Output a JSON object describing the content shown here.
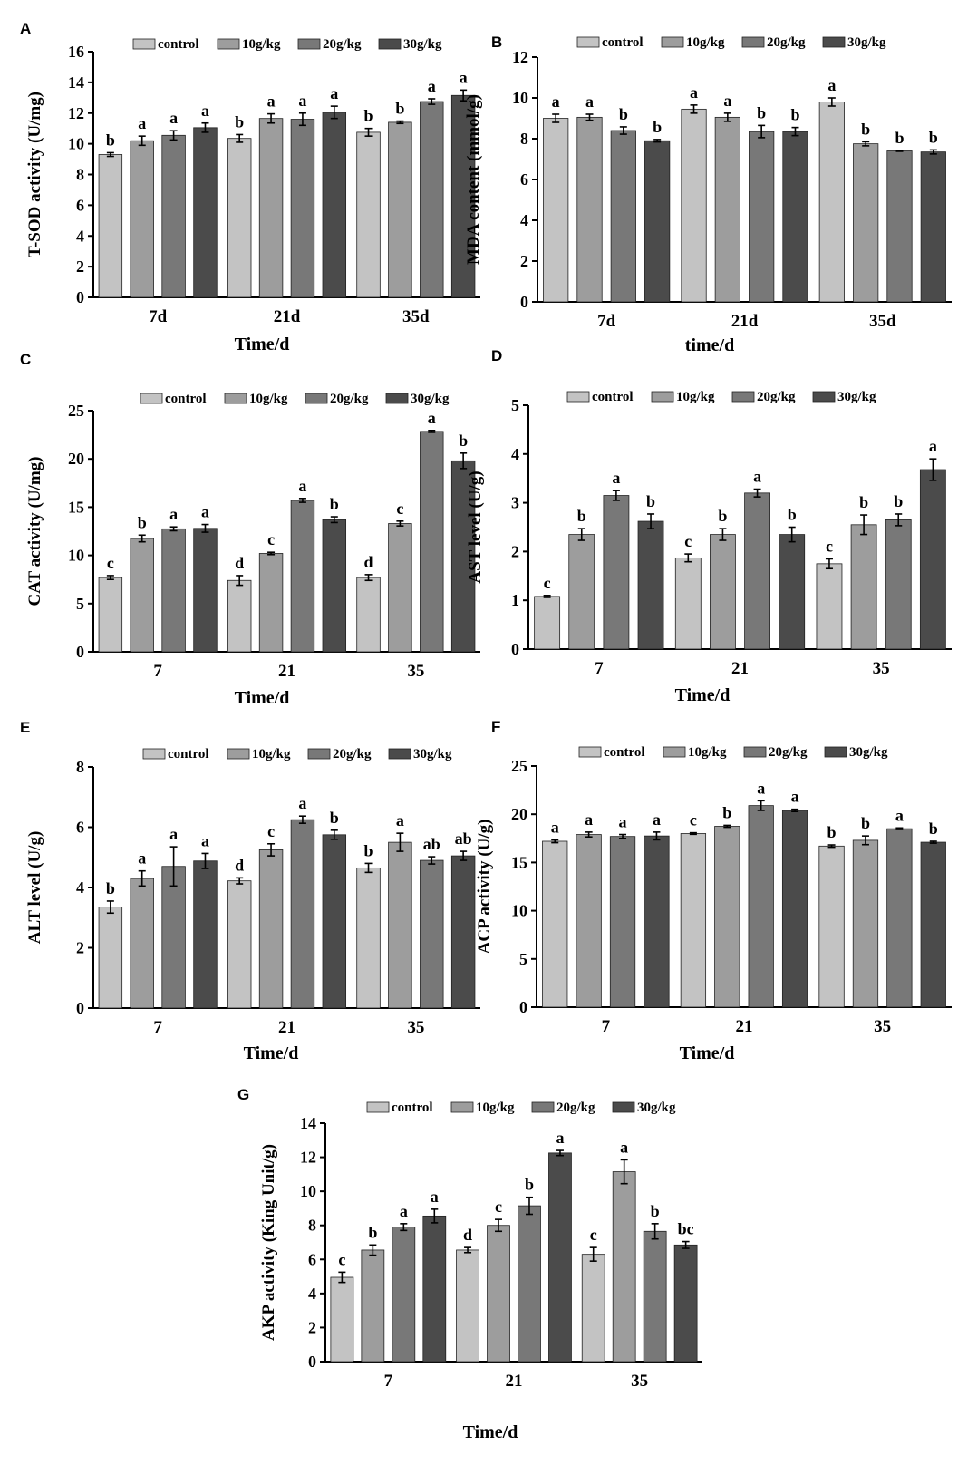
{
  "legend": [
    "control",
    "10g/kg",
    "20g/kg",
    "30g/kg"
  ],
  "series_colors": [
    "#c3c3c3",
    "#9d9d9d",
    "#787878",
    "#4b4b4b"
  ],
  "chart_data": [
    {
      "panel": "A",
      "type": "bar",
      "title": "",
      "xlabel": "Time/d",
      "ylabel": "T-SOD activity (U/mg)",
      "categories": [
        "7d",
        "21d",
        "35d"
      ],
      "ylim": [
        0,
        16
      ],
      "yticks": [
        0,
        2,
        4,
        6,
        8,
        10,
        12,
        14,
        16
      ],
      "series": [
        {
          "name": "control",
          "values": [
            9.3,
            10.35,
            10.75
          ],
          "errors": [
            0.12,
            0.25,
            0.25
          ],
          "labels": [
            "b",
            "b",
            "b"
          ]
        },
        {
          "name": "10g/kg",
          "values": [
            10.2,
            11.65,
            11.4
          ],
          "errors": [
            0.3,
            0.3,
            0.08
          ],
          "labels": [
            "a",
            "a",
            "b"
          ]
        },
        {
          "name": "20g/kg",
          "values": [
            10.55,
            11.6,
            12.75
          ],
          "errors": [
            0.3,
            0.4,
            0.18
          ],
          "labels": [
            "a",
            "a",
            "a"
          ]
        },
        {
          "name": "30g/kg",
          "values": [
            11.05,
            12.05,
            13.15
          ],
          "errors": [
            0.3,
            0.4,
            0.35
          ],
          "labels": [
            "a",
            "a",
            "a"
          ]
        }
      ]
    },
    {
      "panel": "B",
      "type": "bar",
      "title": "",
      "xlabel": "time/d",
      "ylabel": "MDA content (mmol/g)",
      "categories": [
        "7d",
        "21d",
        "35d"
      ],
      "ylim": [
        0,
        12
      ],
      "yticks": [
        0,
        2,
        4,
        6,
        8,
        10,
        12
      ],
      "series": [
        {
          "name": "control",
          "values": [
            9.0,
            9.45,
            9.8
          ],
          "errors": [
            0.2,
            0.2,
            0.2
          ],
          "labels": [
            "a",
            "a",
            "a"
          ]
        },
        {
          "name": "10g/kg",
          "values": [
            9.05,
            9.05,
            7.75
          ],
          "errors": [
            0.15,
            0.2,
            0.1
          ],
          "labels": [
            "a",
            "a",
            "b"
          ]
        },
        {
          "name": "20g/kg",
          "values": [
            8.4,
            8.35,
            7.4
          ],
          "errors": [
            0.18,
            0.3,
            0.02
          ],
          "labels": [
            "b",
            "b",
            "b"
          ]
        },
        {
          "name": "30g/kg",
          "values": [
            7.9,
            8.35,
            7.35
          ],
          "errors": [
            0.06,
            0.2,
            0.1
          ],
          "labels": [
            "b",
            "b",
            "b"
          ]
        }
      ]
    },
    {
      "panel": "C",
      "type": "bar",
      "title": "",
      "xlabel": "Time/d",
      "ylabel": "CAT activity (U/mg)",
      "categories": [
        "7",
        "21",
        "35"
      ],
      "ylim": [
        0,
        25
      ],
      "yticks": [
        0,
        5,
        10,
        15,
        20,
        25
      ],
      "series": [
        {
          "name": "control",
          "values": [
            7.7,
            7.4,
            7.7
          ],
          "errors": [
            0.2,
            0.5,
            0.3
          ],
          "labels": [
            "c",
            "d",
            "d"
          ]
        },
        {
          "name": "10g/kg",
          "values": [
            11.75,
            10.2,
            13.3
          ],
          "errors": [
            0.35,
            0.12,
            0.25
          ],
          "labels": [
            "b",
            "c",
            "c"
          ]
        },
        {
          "name": "20g/kg",
          "values": [
            12.75,
            15.7,
            22.85
          ],
          "errors": [
            0.2,
            0.2,
            0.1
          ],
          "labels": [
            "a",
            "a",
            "a"
          ]
        },
        {
          "name": "30g/kg",
          "values": [
            12.8,
            13.7,
            19.8
          ],
          "errors": [
            0.4,
            0.3,
            0.8
          ],
          "labels": [
            "a",
            "b",
            "b"
          ]
        }
      ]
    },
    {
      "panel": "D",
      "type": "bar",
      "title": "",
      "xlabel": "Time/d",
      "ylabel": "AST level (U/g)",
      "categories": [
        "7",
        "21",
        "35"
      ],
      "ylim": [
        0,
        5
      ],
      "yticks": [
        0,
        1,
        2,
        3,
        4,
        5
      ],
      "series": [
        {
          "name": "control",
          "values": [
            1.08,
            1.87,
            1.75
          ],
          "errors": [
            0.02,
            0.08,
            0.1
          ],
          "labels": [
            "c",
            "c",
            "c"
          ]
        },
        {
          "name": "10g/kg",
          "values": [
            2.35,
            2.35,
            2.55
          ],
          "errors": [
            0.12,
            0.12,
            0.2
          ],
          "labels": [
            "b",
            "b",
            "b"
          ]
        },
        {
          "name": "20g/kg",
          "values": [
            3.15,
            3.2,
            2.65
          ],
          "errors": [
            0.1,
            0.08,
            0.12
          ],
          "labels": [
            "a",
            "a",
            "b"
          ]
        },
        {
          "name": "30g/kg",
          "values": [
            2.62,
            2.35,
            3.68
          ],
          "errors": [
            0.15,
            0.15,
            0.22
          ],
          "labels": [
            "b",
            "b",
            "a"
          ]
        }
      ]
    },
    {
      "panel": "E",
      "type": "bar",
      "title": "",
      "xlabel": "Time/d",
      "ylabel": "ALT level (U/g)",
      "categories": [
        "7",
        "21",
        "35"
      ],
      "ylim": [
        0,
        8
      ],
      "yticks": [
        0,
        2,
        4,
        6,
        8
      ],
      "series": [
        {
          "name": "control",
          "values": [
            3.35,
            4.22,
            4.65
          ],
          "errors": [
            0.2,
            0.1,
            0.15
          ],
          "labels": [
            "b",
            "d",
            "b"
          ]
        },
        {
          "name": "10g/kg",
          "values": [
            4.3,
            5.25,
            5.5
          ],
          "errors": [
            0.25,
            0.2,
            0.3
          ],
          "labels": [
            "a",
            "c",
            "a"
          ]
        },
        {
          "name": "20g/kg",
          "values": [
            4.7,
            6.25,
            4.9
          ],
          "errors": [
            0.65,
            0.12,
            0.12
          ],
          "labels": [
            "a",
            "a",
            "ab"
          ]
        },
        {
          "name": "30g/kg",
          "values": [
            4.88,
            5.75,
            5.05
          ],
          "errors": [
            0.25,
            0.15,
            0.15
          ],
          "labels": [
            "a",
            "b",
            "ab"
          ]
        }
      ]
    },
    {
      "panel": "F",
      "type": "bar",
      "title": "",
      "xlabel": "Time/d",
      "ylabel": "ACP activity (U/g)",
      "categories": [
        "7",
        "21",
        "35"
      ],
      "ylim": [
        0,
        25
      ],
      "yticks": [
        0,
        5,
        10,
        15,
        20,
        25
      ],
      "series": [
        {
          "name": "control",
          "values": [
            17.2,
            18.0,
            16.7
          ],
          "errors": [
            0.15,
            0.08,
            0.12
          ],
          "labels": [
            "a",
            "c",
            "b"
          ]
        },
        {
          "name": "10g/kg",
          "values": [
            17.9,
            18.75,
            17.3
          ],
          "errors": [
            0.25,
            0.1,
            0.45
          ],
          "labels": [
            "a",
            "b",
            "b"
          ]
        },
        {
          "name": "20g/kg",
          "values": [
            17.7,
            20.9,
            18.5
          ],
          "errors": [
            0.2,
            0.5,
            0.08
          ],
          "labels": [
            "a",
            "a",
            "a"
          ]
        },
        {
          "name": "30g/kg",
          "values": [
            17.75,
            20.4,
            17.1
          ],
          "errors": [
            0.4,
            0.12,
            0.1
          ],
          "labels": [
            "a",
            "a",
            "b"
          ]
        }
      ]
    },
    {
      "panel": "G",
      "type": "bar",
      "title": "",
      "xlabel": "Time/d",
      "ylabel": "AKP activity (King Unit/g)",
      "categories": [
        "7",
        "21",
        "35"
      ],
      "ylim": [
        0,
        14
      ],
      "yticks": [
        0,
        2,
        4,
        6,
        8,
        10,
        12,
        14
      ],
      "series": [
        {
          "name": "control",
          "values": [
            4.95,
            6.55,
            6.3
          ],
          "errors": [
            0.3,
            0.15,
            0.4
          ],
          "labels": [
            "c",
            "d",
            "c"
          ]
        },
        {
          "name": "10g/kg",
          "values": [
            6.55,
            8.0,
            11.15
          ],
          "errors": [
            0.3,
            0.35,
            0.7
          ],
          "labels": [
            "b",
            "c",
            "a"
          ]
        },
        {
          "name": "20g/kg",
          "values": [
            7.9,
            9.15,
            7.65
          ],
          "errors": [
            0.2,
            0.5,
            0.45
          ],
          "labels": [
            "a",
            "b",
            "b"
          ]
        },
        {
          "name": "30g/kg",
          "values": [
            8.55,
            12.25,
            6.85
          ],
          "errors": [
            0.4,
            0.15,
            0.2
          ],
          "labels": [
            "a",
            "a",
            "bc"
          ]
        }
      ]
    }
  ]
}
